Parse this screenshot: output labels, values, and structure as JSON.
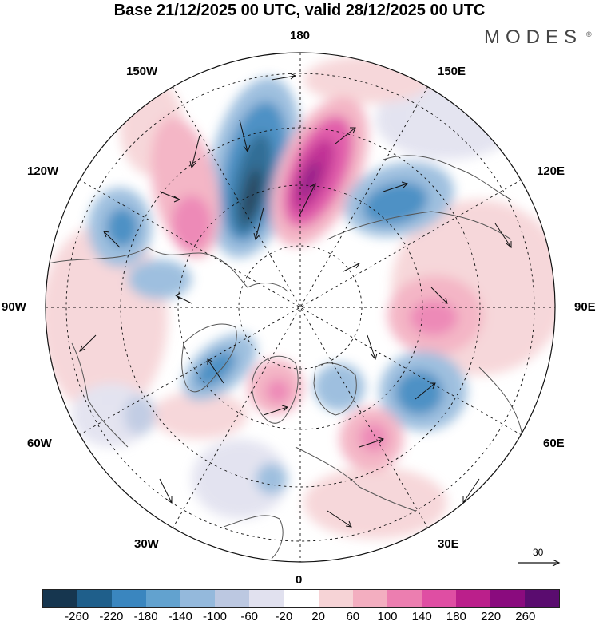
{
  "title": "Base 21/12/2025 00 UTC, valid 28/12/2025 00 UTC",
  "brand": {
    "name": "MODES",
    "mark": "©"
  },
  "map": {
    "projection": "north polar stereographic",
    "longitude_labels": {
      "top": "180",
      "bottom": "0",
      "left": "90W",
      "right": "90E",
      "upper_left_1": "150W",
      "upper_left_2": "120W",
      "upper_right_1": "150E",
      "upper_right_2": "120E",
      "lower_left_1": "60W",
      "lower_left_2": "30W",
      "lower_right_1": "60E",
      "lower_right_2": "30E"
    },
    "wind_reference": {
      "value": "30"
    }
  },
  "colorbar": {
    "colors": [
      "#16364f",
      "#1f5f8b",
      "#3a86bf",
      "#62a2cf",
      "#94b9dc",
      "#bcc8e1",
      "#e1e1ef",
      "#ffffff",
      "#f6d3d6",
      "#f3aec0",
      "#ec7eb0",
      "#df4ea3",
      "#bb1f8b",
      "#8a0b7e",
      "#5a0c6f"
    ],
    "labels": [
      "-260",
      "-220",
      "-180",
      "-140",
      "-100",
      "-60",
      "-20",
      "20",
      "60",
      "100",
      "140",
      "180",
      "220",
      "260"
    ]
  }
}
